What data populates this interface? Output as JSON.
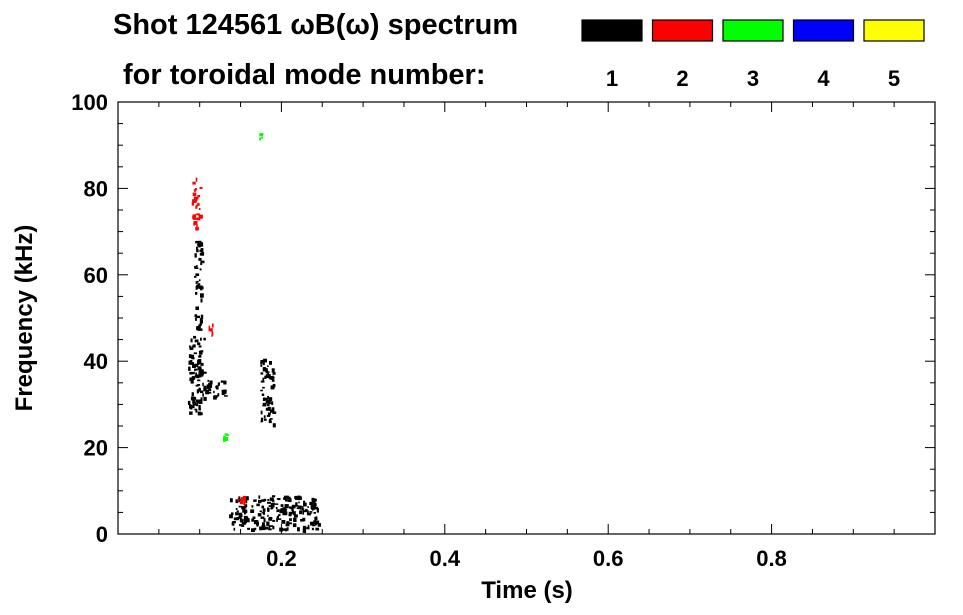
{
  "chart_data": {
    "type": "heatmap",
    "title_line1": "Shot 124561 ωB(ω) spectrum",
    "title_line2": "for toroidal mode number:",
    "xlabel": "Time (s)",
    "ylabel": "Frequency (kHz)",
    "xlim": [
      0.0,
      1.0
    ],
    "ylim": [
      0,
      100
    ],
    "x_ticks": [
      0.2,
      0.4,
      0.6,
      0.8
    ],
    "x_tick_labels": [
      "0.2",
      "0.4",
      "0.6",
      "0.8"
    ],
    "y_ticks": [
      0,
      20,
      40,
      60,
      80,
      100
    ],
    "y_tick_labels": [
      "0",
      "20",
      "40",
      "60",
      "80",
      "100"
    ],
    "legend": [
      {
        "label": "1",
        "color": "#000000"
      },
      {
        "label": "2",
        "color": "#ff0000"
      },
      {
        "label": "3",
        "color": "#00ff00"
      },
      {
        "label": "4",
        "color": "#0000ff"
      },
      {
        "label": "5",
        "color": "#ffff00"
      }
    ],
    "legend_placement": "top-right",
    "regions": [
      {
        "mode": 1,
        "t": [
          0.085,
          0.105
        ],
        "f": [
          28,
          46
        ]
      },
      {
        "mode": 1,
        "t": [
          0.093,
          0.102
        ],
        "f": [
          46,
          68
        ]
      },
      {
        "mode": 1,
        "t": [
          0.103,
          0.13
        ],
        "f": [
          32,
          36
        ]
      },
      {
        "mode": 1,
        "t": [
          0.174,
          0.19
        ],
        "f": [
          25,
          41
        ]
      },
      {
        "mode": 1,
        "t": [
          0.135,
          0.245
        ],
        "f": [
          1,
          9
        ]
      },
      {
        "mode": 2,
        "t": [
          0.09,
          0.1
        ],
        "f": [
          71,
          83
        ]
      },
      {
        "mode": 2,
        "t": [
          0.11,
          0.115
        ],
        "f": [
          46,
          49
        ]
      },
      {
        "mode": 2,
        "t": [
          0.145,
          0.155
        ],
        "f": [
          7,
          10
        ]
      },
      {
        "mode": 3,
        "t": [
          0.172,
          0.176
        ],
        "f": [
          91,
          93
        ]
      },
      {
        "mode": 3,
        "t": [
          0.128,
          0.133
        ],
        "f": [
          22,
          24
        ]
      }
    ]
  }
}
